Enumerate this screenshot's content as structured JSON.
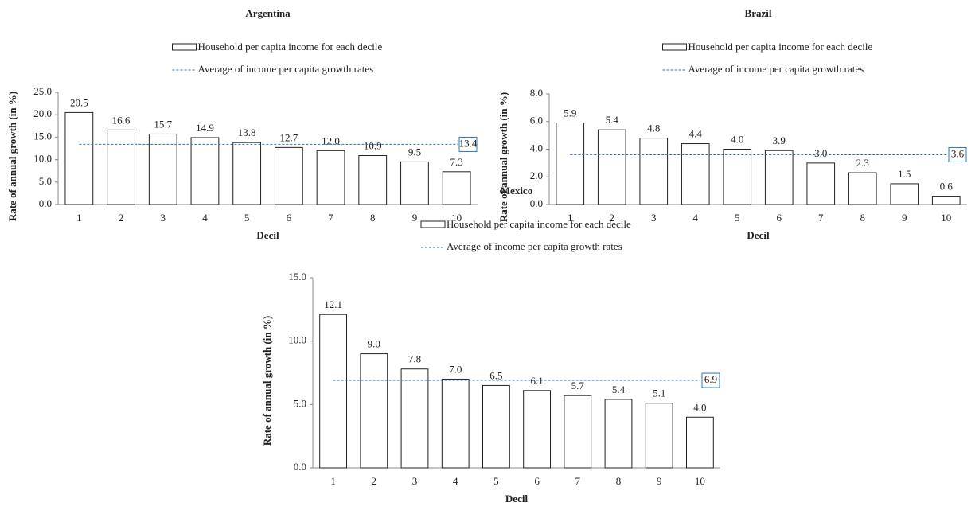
{
  "chart_data": [
    {
      "type": "bar",
      "title": "Argentina",
      "x_label": "Decil",
      "y_label": "Rate of annual growth (in %)",
      "categories": [
        "1",
        "2",
        "3",
        "4",
        "5",
        "6",
        "7",
        "8",
        "9",
        "10"
      ],
      "series": [
        {
          "name": "Household per capita income for each decile",
          "color": "#ffffff",
          "values": [
            20.5,
            16.6,
            15.7,
            14.9,
            13.8,
            12.7,
            12.0,
            10.9,
            9.5,
            7.3
          ],
          "value_labels": [
            "20.5",
            "16.6",
            "15.7",
            "14.9",
            "13.8",
            "12.7",
            "12.0",
            "10.9",
            "9.5",
            "7.3"
          ]
        }
      ],
      "average": {
        "name": "Average of income per capita growth rates",
        "color": "#2e75b6",
        "value": 13.4,
        "value_label": "13.4"
      },
      "ylim": [
        0,
        25
      ],
      "yticks": [
        {
          "value": 0,
          "label": "0.0"
        },
        {
          "value": 5,
          "label": "5.0"
        },
        {
          "value": 10,
          "label": "10.0"
        },
        {
          "value": 15,
          "label": "15.0"
        },
        {
          "value": 20,
          "label": "20.0"
        },
        {
          "value": 25,
          "label": "25.0"
        }
      ]
    },
    {
      "type": "bar",
      "title": "Brazil",
      "x_label": "Decil",
      "y_label": "Rate of annual growth (in %)",
      "categories": [
        "1",
        "2",
        "3",
        "4",
        "5",
        "6",
        "7",
        "8",
        "9",
        "10"
      ],
      "series": [
        {
          "name": "Household per capita income for each decile",
          "color": "#ffffff",
          "values": [
            5.9,
            5.4,
            4.8,
            4.4,
            4.0,
            3.9,
            3.0,
            2.3,
            1.5,
            0.6
          ],
          "value_labels": [
            "5.9",
            "5.4",
            "4.8",
            "4.4",
            "4.0",
            "3.9",
            "3.0",
            "2.3",
            "1.5",
            "0.6"
          ]
        }
      ],
      "average": {
        "name": "Average of income per capita growth rates",
        "color": "#2e75b6",
        "value": 3.6,
        "value_label": "3.6"
      },
      "ylim": [
        0,
        8
      ],
      "yticks": [
        {
          "value": 0,
          "label": "0.0"
        },
        {
          "value": 2,
          "label": "2.0"
        },
        {
          "value": 4,
          "label": "4.0"
        },
        {
          "value": 6,
          "label": "6.0"
        },
        {
          "value": 8,
          "label": "8.0"
        }
      ]
    },
    {
      "type": "bar",
      "title": "Mexico",
      "x_label": "Decil",
      "y_label": "Rate of annual growth (in %)",
      "categories": [
        "1",
        "2",
        "3",
        "4",
        "5",
        "6",
        "7",
        "8",
        "9",
        "10"
      ],
      "series": [
        {
          "name": "Household per capita income for each decile",
          "color": "#ffffff",
          "values": [
            12.1,
            9.0,
            7.8,
            7.0,
            6.5,
            6.1,
            5.7,
            5.4,
            5.1,
            4.0
          ],
          "value_labels": [
            "12.1",
            "9.0",
            "7.8",
            "7.0",
            "6.5",
            "6.1",
            "5.7",
            "5.4",
            "5.1",
            "4.0"
          ]
        }
      ],
      "average": {
        "name": "Average of income per capita growth rates",
        "color": "#2e75b6",
        "value": 6.9,
        "value_label": "6.9"
      },
      "ylim": [
        0,
        15
      ],
      "yticks": [
        {
          "value": 0,
          "label": "0.0"
        },
        {
          "value": 5,
          "label": "5.0"
        },
        {
          "value": 10,
          "label": "10.0"
        },
        {
          "value": 15,
          "label": "15.0"
        }
      ]
    }
  ]
}
